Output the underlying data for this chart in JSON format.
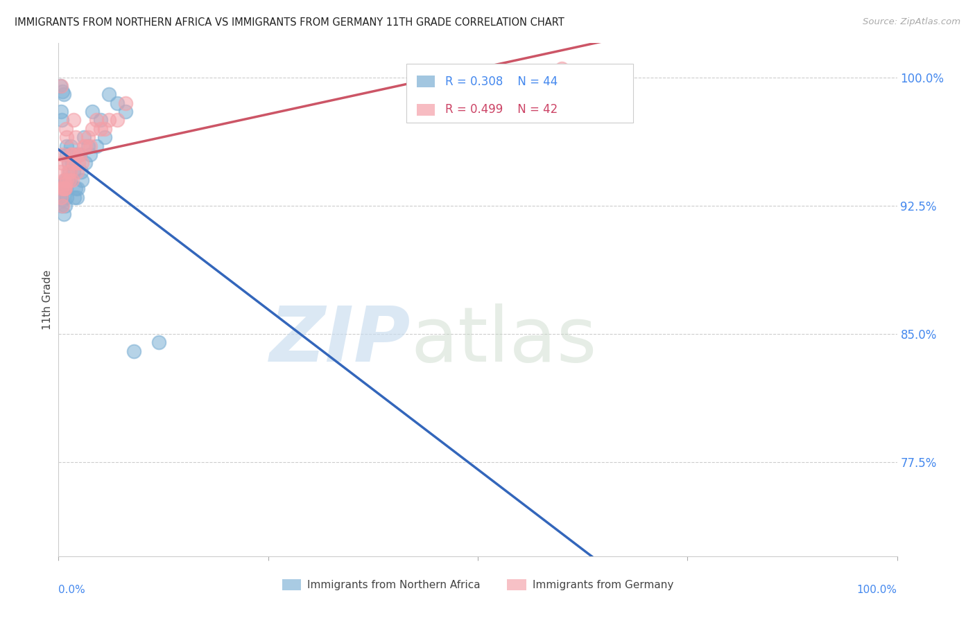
{
  "title": "IMMIGRANTS FROM NORTHERN AFRICA VS IMMIGRANTS FROM GERMANY 11TH GRADE CORRELATION CHART",
  "source": "Source: ZipAtlas.com",
  "ylabel": "11th Grade",
  "xlim": [
    0.0,
    100.0
  ],
  "ylim": [
    72.0,
    102.0
  ],
  "yticks": [
    77.5,
    85.0,
    92.5,
    100.0
  ],
  "ytick_labels": [
    "77.5%",
    "85.0%",
    "92.5%",
    "100.0%"
  ],
  "blue_R": 0.308,
  "blue_N": 44,
  "pink_R": 0.499,
  "pink_N": 42,
  "blue_color": "#7BAFD4",
  "pink_color": "#F4A0A8",
  "blue_line_color": "#3366BB",
  "pink_line_color": "#CC5566",
  "legend_label_blue": "Immigrants from Northern Africa",
  "legend_label_pink": "Immigrants from Germany",
  "blue_scatter_x": [
    0.2,
    0.3,
    0.3,
    0.4,
    0.4,
    0.5,
    0.5,
    0.6,
    0.6,
    0.7,
    0.8,
    0.8,
    0.9,
    1.0,
    1.0,
    1.0,
    1.1,
    1.2,
    1.3,
    1.4,
    1.5,
    1.6,
    1.8,
    1.9,
    2.0,
    2.0,
    2.2,
    2.3,
    2.5,
    2.7,
    2.8,
    3.0,
    3.2,
    3.5,
    3.8,
    4.0,
    4.5,
    5.0,
    5.5,
    6.0,
    7.0,
    8.0,
    9.0,
    12.0
  ],
  "blue_scatter_y": [
    99.5,
    98.0,
    93.0,
    92.5,
    97.5,
    92.8,
    99.2,
    92.0,
    99.0,
    93.8,
    92.5,
    94.0,
    93.5,
    93.0,
    95.5,
    96.0,
    94.0,
    95.0,
    94.5,
    94.0,
    96.0,
    95.0,
    94.5,
    93.0,
    93.5,
    95.5,
    93.0,
    93.5,
    95.5,
    94.5,
    94.0,
    96.5,
    95.0,
    96.0,
    95.5,
    98.0,
    96.0,
    97.5,
    96.5,
    99.0,
    98.5,
    98.0,
    84.0,
    84.5
  ],
  "pink_scatter_x": [
    0.2,
    0.3,
    0.3,
    0.4,
    0.5,
    0.6,
    0.7,
    0.8,
    0.9,
    1.0,
    1.1,
    1.2,
    1.3,
    1.4,
    1.5,
    1.6,
    1.8,
    1.8,
    2.0,
    2.0,
    2.2,
    2.4,
    2.5,
    2.8,
    3.0,
    3.2,
    3.5,
    3.8,
    4.0,
    4.5,
    5.0,
    5.5,
    6.0,
    7.0,
    8.0,
    0.4,
    0.6,
    0.8,
    1.0,
    1.6,
    60.0,
    0.5
  ],
  "pink_scatter_y": [
    94.5,
    93.0,
    99.5,
    93.5,
    95.5,
    93.5,
    93.5,
    93.8,
    97.0,
    94.0,
    94.5,
    95.0,
    94.0,
    94.5,
    95.5,
    95.5,
    95.0,
    97.5,
    95.5,
    96.5,
    94.5,
    95.0,
    95.5,
    95.0,
    96.0,
    96.0,
    96.5,
    96.0,
    97.0,
    97.5,
    97.0,
    97.0,
    97.5,
    97.5,
    98.5,
    95.0,
    94.0,
    93.5,
    96.5,
    94.0,
    100.5,
    92.5
  ]
}
